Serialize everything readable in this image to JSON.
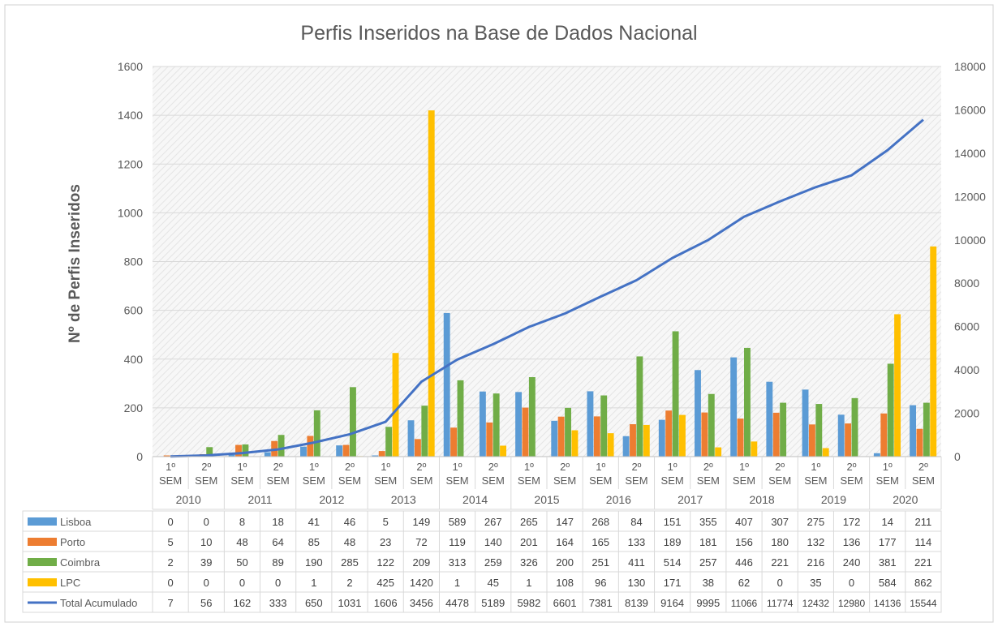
{
  "chart_data": {
    "type": "bar",
    "title": "Perfis Inseridos na Base de Dados Nacional",
    "ylabel": "Nº de Perfis Inseridos",
    "xlabel": "",
    "ylim": [
      0,
      1600
    ],
    "yticks": [
      0,
      200,
      400,
      600,
      800,
      1000,
      1200,
      1400,
      1600
    ],
    "y2lim": [
      0,
      18000
    ],
    "y2ticks": [
      0,
      2000,
      4000,
      6000,
      8000,
      10000,
      12000,
      14000,
      16000,
      18000
    ],
    "grid": true,
    "legend_placement": "data table (left)",
    "categories": [
      "1º SEM 2010",
      "2º SEM 2010",
      "1º SEM 2011",
      "2º SEM 2011",
      "1º SEM 2012",
      "2º SEM 2012",
      "1º SEM 2013",
      "2º SEM 2013",
      "1º SEM 2014",
      "2º SEM 2014",
      "1º SEM 2015",
      "2º SEM 2015",
      "1º SEM 2016",
      "2º SEM 2016",
      "1º SEM 2017",
      "2º SEM 2017",
      "1º SEM 2018",
      "2º SEM 2018",
      "1º SEM 2019",
      "2º SEM 2019",
      "1º SEM 2020",
      "2º SEM 2020"
    ],
    "semester_labels": [
      "1º",
      "SEM",
      "2º",
      "SEM"
    ],
    "years": [
      "2010",
      "2011",
      "2012",
      "2013",
      "2014",
      "2015",
      "2016",
      "2017",
      "2018",
      "2019",
      "2020"
    ],
    "series": [
      {
        "name": "Lisboa",
        "color": "#5B9BD5",
        "kind": "bar",
        "axis": "left",
        "values": [
          0,
          0,
          8,
          18,
          41,
          46,
          5,
          149,
          589,
          267,
          265,
          147,
          268,
          84,
          151,
          355,
          407,
          307,
          275,
          172,
          14,
          211
        ]
      },
      {
        "name": "Porto",
        "color": "#ED7D31",
        "kind": "bar",
        "axis": "left",
        "values": [
          5,
          10,
          48,
          64,
          85,
          48,
          23,
          72,
          119,
          140,
          201,
          164,
          165,
          133,
          189,
          181,
          156,
          180,
          132,
          136,
          177,
          114
        ]
      },
      {
        "name": "Coimbra",
        "color": "#70AD47",
        "kind": "bar",
        "axis": "left",
        "values": [
          2,
          39,
          50,
          89,
          190,
          285,
          122,
          209,
          313,
          259,
          326,
          200,
          251,
          411,
          514,
          257,
          446,
          221,
          216,
          240,
          381,
          221
        ]
      },
      {
        "name": "LPC",
        "color": "#FFC000",
        "kind": "bar",
        "axis": "left",
        "values": [
          0,
          0,
          0,
          0,
          1,
          2,
          425,
          1420,
          1,
          45,
          1,
          108,
          96,
          130,
          171,
          38,
          62,
          0,
          35,
          0,
          584,
          862
        ]
      },
      {
        "name": "Total Acumulado",
        "color": "#4472C4",
        "kind": "line",
        "axis": "right",
        "values": [
          7,
          56,
          162,
          333,
          650,
          1031,
          1606,
          3456,
          4478,
          5189,
          5982,
          6601,
          7381,
          8139,
          9164,
          9995,
          11066,
          11774,
          12432,
          12980,
          14136,
          15544
        ]
      }
    ]
  }
}
